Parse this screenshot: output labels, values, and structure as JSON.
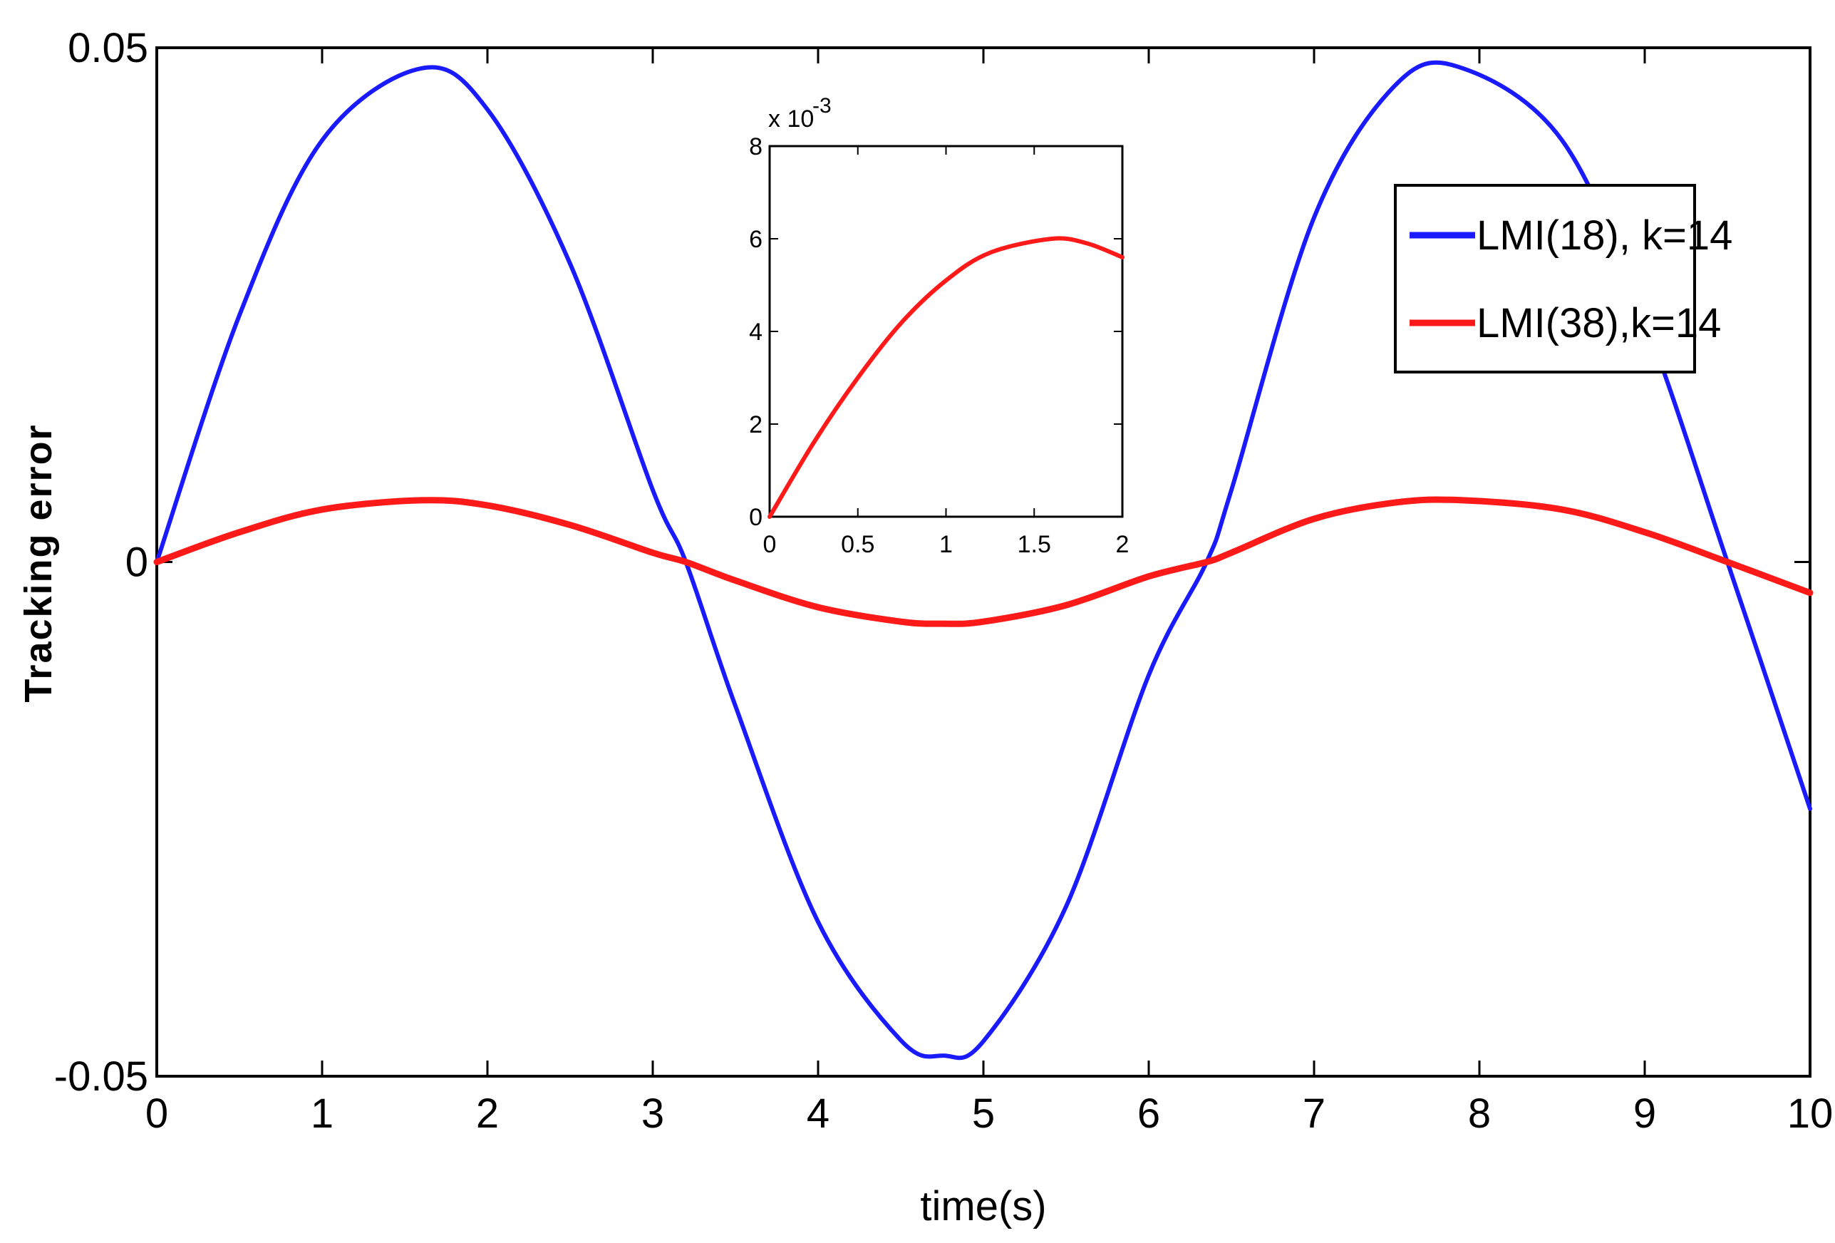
{
  "chart_data": [
    {
      "type": "line",
      "title": "",
      "xlabel": "time(s)",
      "ylabel": "Tracking error",
      "xlim": [
        0,
        10
      ],
      "ylim": [
        -0.05,
        0.05
      ],
      "x_ticks": [
        "0",
        "1",
        "2",
        "3",
        "4",
        "5",
        "6",
        "7",
        "8",
        "9",
        "10"
      ],
      "y_ticks": [
        "-0.05",
        "0",
        "0.05"
      ],
      "grid": false,
      "legend_position": "top-right",
      "series": [
        {
          "name": "LMI(18), k=14",
          "color": "#1a1aff",
          "x": [
            0,
            0.5,
            1,
            1.6,
            2,
            2.5,
            3,
            3.2,
            3.5,
            4,
            4.5,
            4.76,
            5,
            5.5,
            6,
            6.35,
            6.5,
            7,
            7.5,
            7.9,
            8.5,
            9,
            9.5,
            10
          ],
          "y": [
            0,
            0.024,
            0.041,
            0.048,
            0.044,
            0.029,
            0.007,
            0,
            -0.014,
            -0.035,
            -0.0465,
            -0.048,
            -0.0466,
            -0.0335,
            -0.011,
            0,
            0.007,
            0.0335,
            0.0465,
            0.048,
            0.041,
            0.0235,
            0,
            -0.024
          ]
        },
        {
          "name": "LMI(38),k=14",
          "color": "#ff1a1a",
          "x": [
            0,
            0.5,
            1,
            1.6,
            2,
            2.5,
            3,
            3.2,
            3.5,
            4,
            4.5,
            4.76,
            5,
            5.5,
            6,
            6.35,
            6.5,
            7,
            7.5,
            7.9,
            8.5,
            9,
            9.5,
            10
          ],
          "y": [
            0,
            0.0029,
            0.0051,
            0.006,
            0.0055,
            0.0036,
            0.0009,
            0,
            -0.0018,
            -0.0044,
            -0.0058,
            -0.006,
            -0.0058,
            -0.0042,
            -0.0014,
            0,
            0.0009,
            0.0042,
            0.0058,
            0.006,
            0.0051,
            0.0029,
            0,
            -0.003
          ]
        }
      ]
    },
    {
      "type": "line",
      "title": "",
      "xlabel": "",
      "ylabel": "",
      "xlim": [
        0,
        2
      ],
      "ylim": [
        0,
        0.008
      ],
      "y_scale_note": "x 10",
      "y_scale_exponent": "-3",
      "x_ticks": [
        "0",
        "0.5",
        "1",
        "1.5",
        "2"
      ],
      "y_ticks": [
        "0",
        "2",
        "4",
        "6",
        "8"
      ],
      "grid": false,
      "series": [
        {
          "color": "#ff1a1a",
          "x": [
            0,
            0.25,
            0.5,
            0.75,
            1,
            1.25,
            1.6,
            1.8,
            2
          ],
          "y": [
            0,
            0.0016,
            0.003,
            0.0042,
            0.0051,
            0.0057,
            0.006,
            0.0059,
            0.0056
          ]
        }
      ]
    }
  ]
}
